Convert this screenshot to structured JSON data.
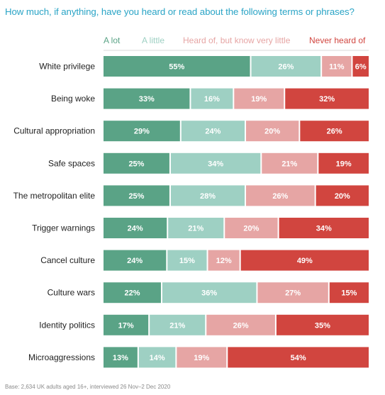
{
  "chart_data": {
    "type": "bar",
    "orientation": "horizontal",
    "stacked": true,
    "title": "How much, if anything, have you heard or read about the following terms or phrases?",
    "note": "Base: 2,634 UK adults aged 16+, interviewed 26 Nov–2 Dec 2020",
    "legend_position": "top",
    "xlim": [
      0,
      100
    ],
    "categories": [
      "White privilege",
      "Being woke",
      "Cultural appropriation",
      "Safe spaces",
      "The metropolitan elite",
      "Trigger warnings",
      "Cancel culture",
      "Culture wars",
      "Identity politics",
      "Microaggressions"
    ],
    "series": [
      {
        "name": "A lot",
        "color": "#5aa386",
        "values": [
          55,
          33,
          29,
          25,
          25,
          24,
          24,
          22,
          17,
          13
        ]
      },
      {
        "name": "A little",
        "color": "#9ed0c3",
        "values": [
          26,
          16,
          24,
          34,
          28,
          21,
          15,
          36,
          21,
          14
        ]
      },
      {
        "name": "Heard of, but know very little",
        "color": "#e6a5a4",
        "values": [
          11,
          19,
          20,
          21,
          26,
          20,
          12,
          27,
          26,
          19
        ]
      },
      {
        "name": "Never heard of",
        "color": "#d1453f",
        "values": [
          6,
          32,
          26,
          19,
          20,
          34,
          49,
          15,
          35,
          54
        ]
      }
    ]
  }
}
